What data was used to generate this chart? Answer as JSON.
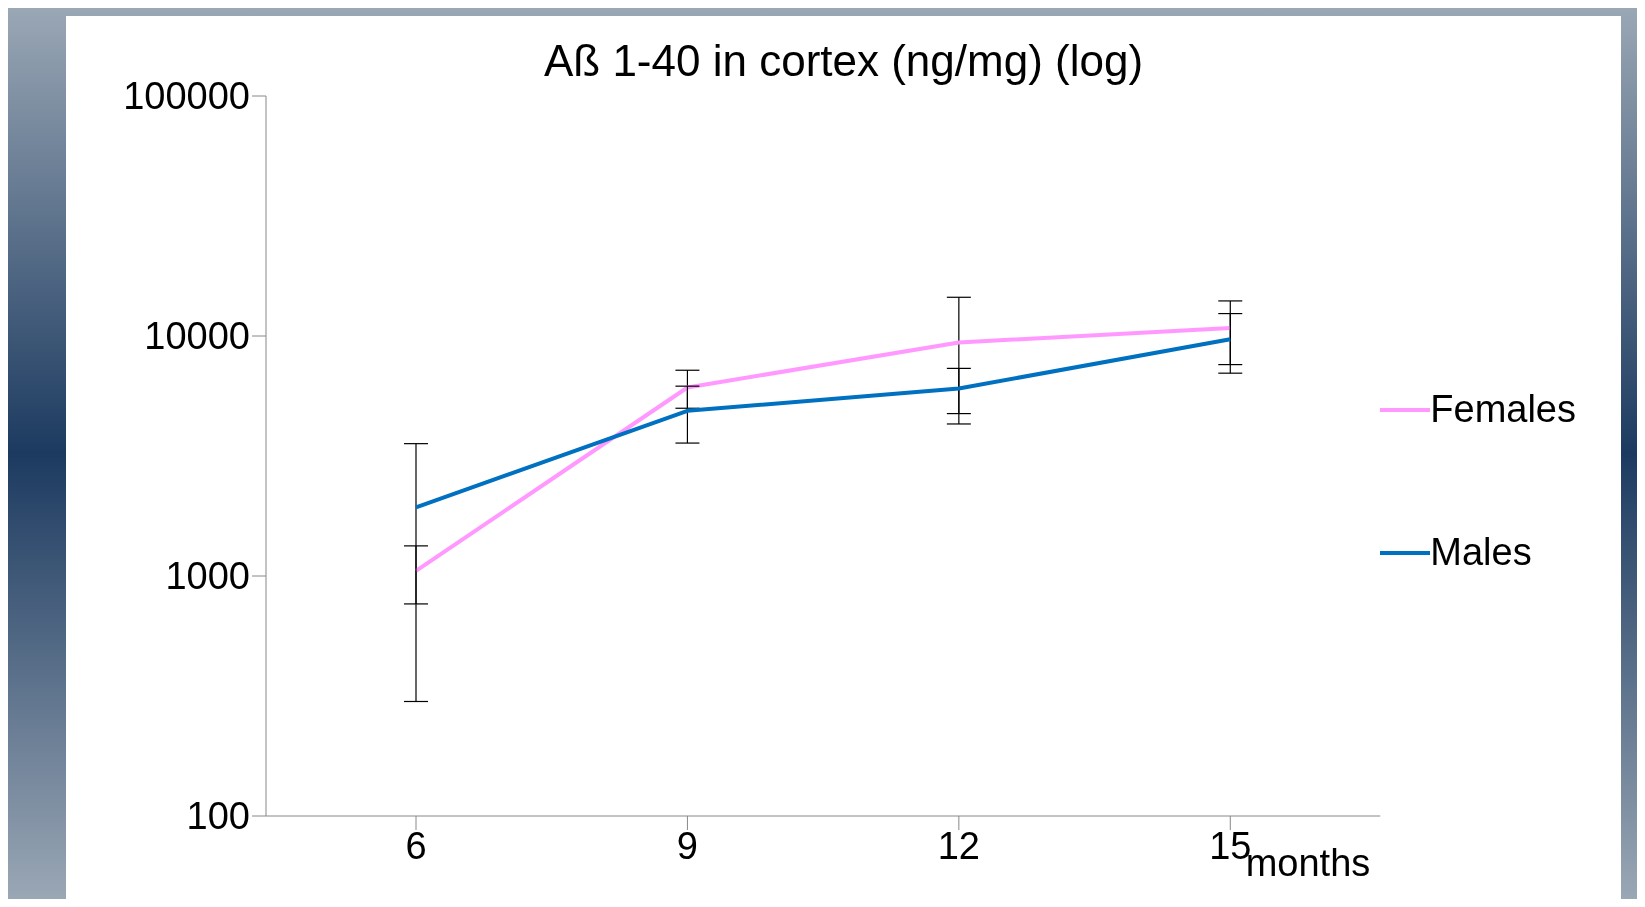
{
  "chart_data": {
    "type": "line",
    "title": "Aß 1-40 in cortex (ng/mg) (log)",
    "xlabel": "months",
    "categories": [
      "6",
      "9",
      "12",
      "15"
    ],
    "series": [
      {
        "name": "Females",
        "color": "#ff99ff",
        "values": [
          1050,
          6100,
          9400,
          10800
        ],
        "errors": [
          285,
          1100,
          5100,
          3200
        ]
      },
      {
        "name": "Males",
        "color": "#0070c0",
        "values": [
          1930,
          4880,
          6040,
          9700
        ],
        "errors": [
          1630,
          1300,
          1290,
          2700
        ]
      }
    ],
    "log": "y",
    "ylim": [
      100,
      100000
    ],
    "yticks": [
      100,
      1000,
      10000,
      100000
    ],
    "grid": false,
    "legend": "right",
    "marker": "none",
    "line_style": "solid"
  }
}
